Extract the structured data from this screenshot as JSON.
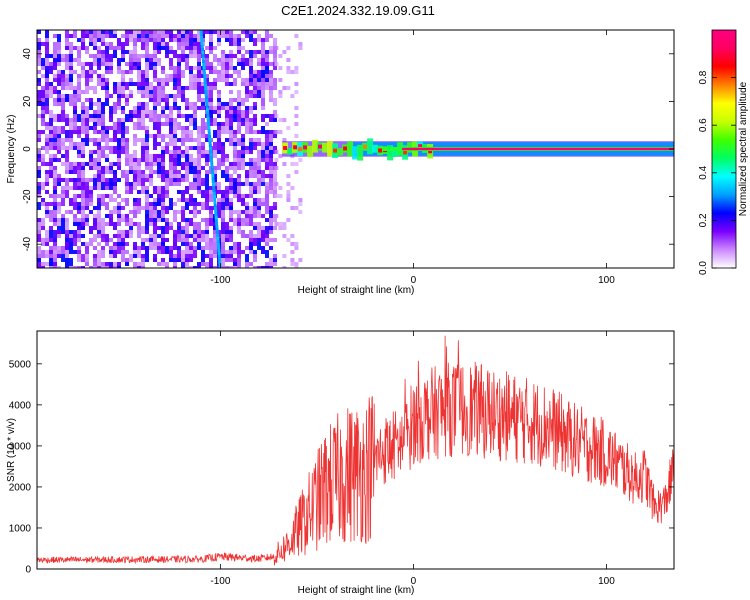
{
  "title": "C2E1.2024.332.19.09.G11",
  "chart_data": [
    {
      "type": "heatmap",
      "xlabel": "Height of straight line (km)",
      "ylabel": "Frequency (Hz)",
      "xlim": [
        -195,
        135
      ],
      "ylim": [
        -50,
        50
      ],
      "xticks": [
        -100,
        0,
        100
      ],
      "yticks": [
        -40,
        -20,
        0,
        20,
        40
      ],
      "colorbar": {
        "label": "Normalized spectral amplitude",
        "range": [
          0,
          1
        ],
        "ticks": [
          0.0,
          0.2,
          0.4,
          0.6,
          0.8
        ],
        "colors": [
          "#ffffff",
          "#cc88ff",
          "#7a00ff",
          "#0000ff",
          "#00a0ff",
          "#00ffff",
          "#00ff60",
          "#40ff00",
          "#c8ff00",
          "#ffff00",
          "#ff8000",
          "#ff0000",
          "#ff0060",
          "#ff0080"
        ]
      },
      "regions": [
        {
          "x": [
            -195,
            -72
          ],
          "y": [
            -50,
            50
          ],
          "amplitude": 0.2,
          "pattern": "noise"
        },
        {
          "x": [
            -72,
            -68
          ],
          "y": [
            -50,
            50
          ],
          "amplitude": 0.05,
          "pattern": "sparse"
        },
        {
          "x": [
            -68,
            135
          ],
          "y": [
            -2,
            2
          ],
          "amplitude": 0.95,
          "pattern": "carrier"
        }
      ],
      "streak": {
        "x": [
          -110,
          -100
        ],
        "y": [
          -50,
          50
        ],
        "amplitude": 0.3
      }
    },
    {
      "type": "line",
      "xlabel": "Height of straight line (km)",
      "ylabel": "SNR (10 * v/v)",
      "xlim": [
        -195,
        135
      ],
      "ylim": [
        0,
        5800
      ],
      "xticks": [
        -100,
        0,
        100
      ],
      "yticks": [
        0,
        1000,
        2000,
        3000,
        4000,
        5000
      ],
      "color": "#ee3333",
      "envelope": {
        "x": [
          -195,
          -150,
          -110,
          -100,
          -80,
          -72,
          -65,
          -55,
          -45,
          -35,
          -25,
          -15,
          -5,
          0,
          10,
          20,
          30,
          40,
          50,
          60,
          70,
          80,
          90,
          100,
          110,
          115,
          120,
          125,
          130,
          135
        ],
        "y": [
          220,
          230,
          240,
          300,
          250,
          300,
          600,
          1300,
          2000,
          2300,
          2400,
          2900,
          3100,
          3600,
          3800,
          3900,
          3900,
          3800,
          3700,
          3600,
          3500,
          3200,
          3000,
          2800,
          2400,
          2200,
          2300,
          1500,
          1600,
          2400
        ]
      }
    }
  ]
}
